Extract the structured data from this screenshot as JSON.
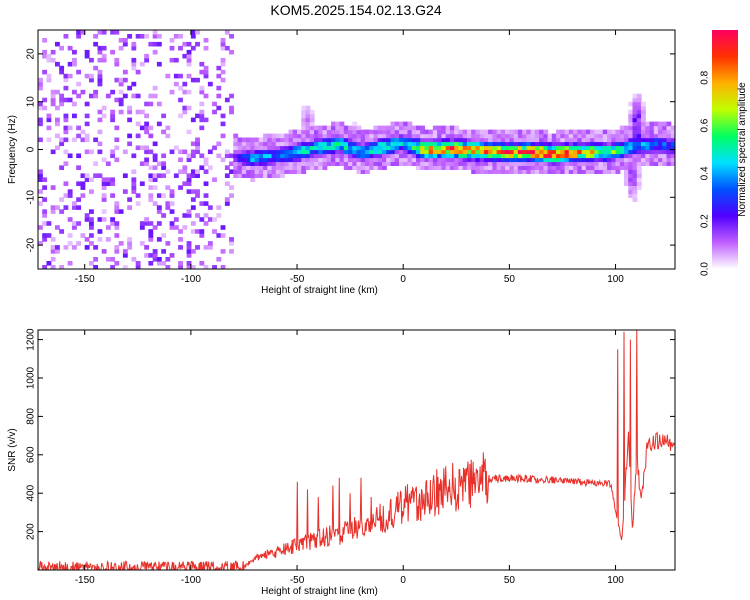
{
  "title": "KOM5.2025.154.02.13.G24",
  "chart_data": [
    {
      "type": "heatmap",
      "xlabel": "Height of straight line (km)",
      "ylabel": "Frequency (Hz)",
      "xlim": [
        -172,
        128
      ],
      "ylim": [
        -25,
        25
      ],
      "xticks": [
        -150,
        -100,
        -50,
        0,
        50,
        100
      ],
      "yticks": [
        -20,
        -10,
        0,
        10,
        20
      ],
      "colorbar": {
        "label": "Normalized spectral amplitude",
        "range": [
          0,
          1
        ],
        "ticks": [
          0.0,
          0.2,
          0.4,
          0.6,
          0.8
        ],
        "colors": [
          "#ffffff",
          "#c060ff",
          "#5000ff",
          "#0050ff",
          "#00e0ff",
          "#00ff60",
          "#c0ff00",
          "#ffb000",
          "#ff3000",
          "#ff0060"
        ]
      },
      "noise_region": {
        "x": [
          -172,
          -80
        ],
        "f": [
          -25,
          25
        ]
      },
      "band_center": [
        [
          -80,
          -1.5
        ],
        [
          -70,
          -1.8
        ],
        [
          -60,
          -1.2
        ],
        [
          -50,
          -0.5
        ],
        [
          -40,
          0.5
        ],
        [
          -30,
          1.2
        ],
        [
          -20,
          -0.5
        ],
        [
          -10,
          0.5
        ],
        [
          0,
          1.5
        ],
        [
          10,
          0
        ],
        [
          20,
          0.2
        ],
        [
          30,
          0
        ],
        [
          40,
          -0.3
        ],
        [
          50,
          -0.5
        ],
        [
          60,
          -0.4
        ],
        [
          70,
          -0.8
        ],
        [
          80,
          -0.6
        ],
        [
          90,
          -0.4
        ],
        [
          98,
          -0.5
        ],
        [
          110,
          1
        ],
        [
          120,
          1.2
        ],
        [
          128,
          0.8
        ]
      ],
      "band_peak": [
        [
          -80,
          0.15
        ],
        [
          -70,
          0.4
        ],
        [
          -60,
          0.35
        ],
        [
          -50,
          0.45
        ],
        [
          -40,
          0.45
        ],
        [
          -30,
          0.5
        ],
        [
          -20,
          0.45
        ],
        [
          -10,
          0.55
        ],
        [
          0,
          0.4
        ],
        [
          10,
          0.75
        ],
        [
          20,
          0.8
        ],
        [
          30,
          0.85
        ],
        [
          40,
          0.75
        ],
        [
          50,
          0.82
        ],
        [
          60,
          0.85
        ],
        [
          70,
          0.9
        ],
        [
          80,
          0.8
        ],
        [
          90,
          0.7
        ],
        [
          98,
          0.55
        ],
        [
          110,
          0.4
        ],
        [
          120,
          0.35
        ],
        [
          128,
          0.3
        ]
      ],
      "feature_blobs": [
        {
          "x": 110,
          "f": 4,
          "fw": 6,
          "peak": 0.25
        },
        {
          "x": 108,
          "f": -5,
          "fw": 5,
          "peak": 0.15
        },
        {
          "x": -23,
          "f": 3,
          "fw": 2,
          "peak": 0.15
        },
        {
          "x": -45,
          "f": 6,
          "fw": 3,
          "peak": 0.1
        }
      ]
    },
    {
      "type": "line",
      "xlabel": "Height of straight line (km)",
      "ylabel": "SNR (v/v)",
      "xlim": [
        -172,
        128
      ],
      "ylim": [
        0,
        1250
      ],
      "xticks": [
        -150,
        -100,
        -50,
        0,
        50,
        100
      ],
      "yticks": [
        200,
        400,
        600,
        800,
        1000,
        1200
      ],
      "color": "#e8302a",
      "envelope": [
        [
          -172,
          10
        ],
        [
          -80,
          10
        ],
        [
          -75,
          15
        ],
        [
          -70,
          60
        ],
        [
          -60,
          90
        ],
        [
          -50,
          130
        ],
        [
          -40,
          160
        ],
        [
          -30,
          190
        ],
        [
          -20,
          220
        ],
        [
          -10,
          270
        ],
        [
          0,
          340
        ],
        [
          10,
          380
        ],
        [
          20,
          420
        ],
        [
          30,
          450
        ],
        [
          40,
          475
        ],
        [
          50,
          480
        ],
        [
          60,
          475
        ],
        [
          70,
          470
        ],
        [
          80,
          460
        ],
        [
          90,
          455
        ],
        [
          98,
          450
        ],
        [
          100,
          300
        ],
        [
          103,
          150
        ],
        [
          106,
          700
        ],
        [
          108,
          200
        ],
        [
          110,
          600
        ],
        [
          112,
          350
        ],
        [
          115,
          650
        ],
        [
          120,
          670
        ],
        [
          128,
          660
        ]
      ],
      "spikes": [
        [
          -50,
          460
        ],
        [
          -45,
          420
        ],
        [
          -40,
          380
        ],
        [
          -33,
          440
        ],
        [
          -30,
          480
        ],
        [
          -25,
          400
        ],
        [
          -20,
          480
        ],
        [
          -15,
          380
        ],
        [
          101,
          1150
        ],
        [
          104,
          1240
        ],
        [
          107,
          1200
        ],
        [
          110,
          1250
        ]
      ]
    }
  ]
}
